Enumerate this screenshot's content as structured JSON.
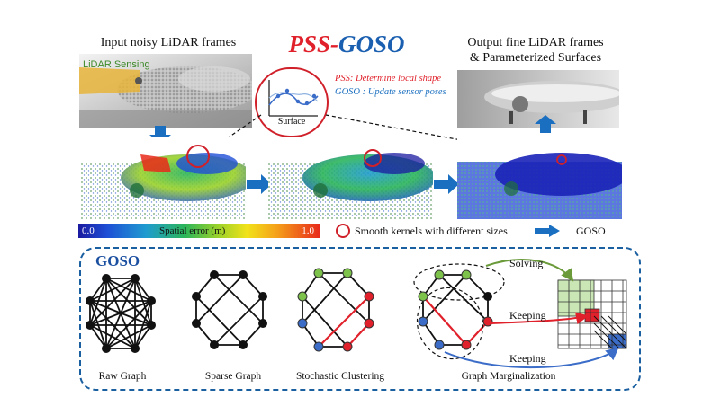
{
  "title": {
    "part1": "PSS",
    "sep": "-",
    "part2": "GOSO"
  },
  "labels": {
    "input": "Input noisy LiDAR frames",
    "lidar_sensing": "LiDAR Sensing",
    "output_line1": "Output fine LiDAR frames",
    "output_line2": "& Parameterized Surfaces",
    "surface": "Surface",
    "pss_note": "PSS: Determine local shape",
    "goso_note": "GOSO : Update sensor poses"
  },
  "legend": {
    "scale_min": "0.0",
    "scale_label": "Spatial error (m)",
    "scale_max": "1.0",
    "kernels": "Smooth kernels with different sizes",
    "arrow_label": "GOSO"
  },
  "goso_panel": {
    "tag": "GOSO",
    "graphs": [
      "Raw Graph",
      "Sparse Graph",
      "Stochastic Clustering",
      "Graph Marginalization"
    ],
    "solving": "Solving",
    "keeping1": "Keeping",
    "keeping2": "Keeping"
  },
  "colors": {
    "pss_red": "#e0202a",
    "goso_blue": "#1a5fb0",
    "node_green": "#7dc24b",
    "node_blue": "#3a6cc8",
    "node_red": "#e0202a"
  }
}
